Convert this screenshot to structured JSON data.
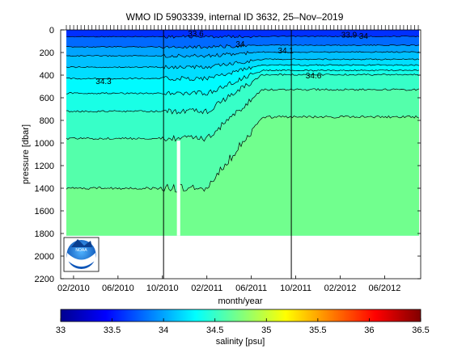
{
  "chart_data": {
    "type": "heatmap",
    "title": "WMO ID 5903339, internal ID 3632, 25–Nov–2019",
    "xlabel": "month/year",
    "ylabel": "pressure [dbar]",
    "x_tick_labels": [
      "02/2010",
      "06/2010",
      "10/2010",
      "02/2011",
      "06/2011",
      "10/2011",
      "02/2012",
      "06/2012"
    ],
    "y_tick_labels": [
      "0",
      "200",
      "400",
      "600",
      "800",
      "1000",
      "1200",
      "1400",
      "1600",
      "1800",
      "2000",
      "2200"
    ],
    "y_ticks": [
      0,
      200,
      400,
      600,
      800,
      1000,
      1200,
      1400,
      1600,
      1800,
      2000,
      2200
    ],
    "ylim": [
      0,
      2200
    ],
    "y_reversed": true,
    "colorbar": {
      "label": "salinity [psu]",
      "tick_labels": [
        "33",
        "33.5",
        "34",
        "34.5",
        "35",
        "35.5",
        "36",
        "36.5"
      ],
      "range": [
        33,
        36.5
      ],
      "colormap": "jet"
    },
    "contour_labels": [
      {
        "text": "33.6",
        "x_month": 12.0,
        "pressure": 30
      },
      {
        "text": "34.3",
        "x_month": 3.7,
        "pressure": 450
      },
      {
        "text": "34",
        "x_month": 16.0,
        "pressure": 120
      },
      {
        "text": "34.1",
        "x_month": 20.1,
        "pressure": 180
      },
      {
        "text": "34.6",
        "x_month": 22.6,
        "pressure": 400
      },
      {
        "text": "33.9",
        "x_month": 25.8,
        "pressure": 40
      },
      {
        "text": "34",
        "x_month": 27.1,
        "pressure": 50
      }
    ],
    "vertical_lines_month": [
      9.1,
      20.6
    ],
    "data_gap": {
      "x_month_start": 10.3,
      "x_month_end": 10.6,
      "pressure_top": 980
    },
    "salinity_layers": [
      {
        "salinity_top": 33.6,
        "depth_top": 0
      },
      {
        "salinity_top": 33.8,
        "depth_top": 60
      },
      {
        "salinity_top": 34.0,
        "depth_top": 150
      },
      {
        "salinity_top": 34.1,
        "depth_top": 230
      },
      {
        "salinity_top": 34.2,
        "depth_top": 330
      },
      {
        "salinity_top": 34.3,
        "depth_top": 430
      },
      {
        "salinity_top": 34.4,
        "depth_top": 560
      },
      {
        "salinity_top": 34.5,
        "depth_top": 720
      },
      {
        "salinity_top": 34.6,
        "depth_top": 960
      },
      {
        "salinity_top": 34.7,
        "depth_top": 1400
      }
    ],
    "data_bottom_pressure": 1820,
    "logo": "NOAA"
  }
}
